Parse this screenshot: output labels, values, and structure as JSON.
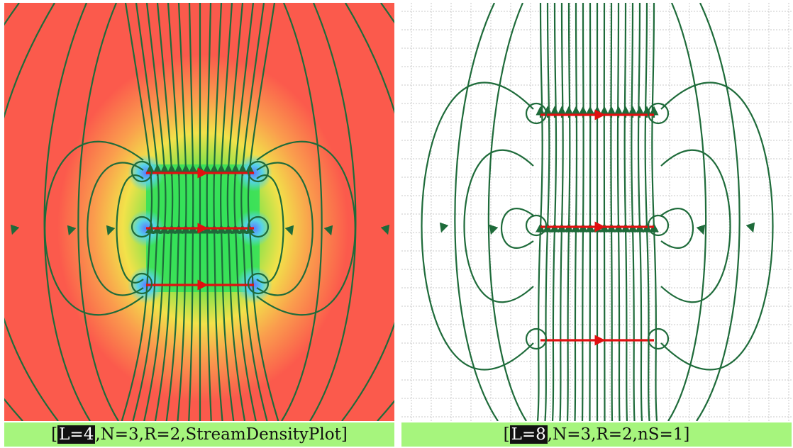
{
  "colors": {
    "caption_bg": "#a6f57d",
    "field_line": "#1e6b3a",
    "conductor": "#e01010",
    "field_far": "#fb5a4c",
    "grid": "#c8c8c8"
  },
  "panels": [
    {
      "id": "left",
      "style": "stream-density-plot",
      "params": {
        "L": 4,
        "N": 3,
        "R": 2,
        "plot_type": "StreamDensityPlot"
      },
      "caption": {
        "open": "[",
        "highlight": "L=4",
        "rest": ",N=3,R=2,StreamDensityPlot]"
      }
    },
    {
      "id": "right",
      "style": "stream-plot-gridlines",
      "params": {
        "L": 8,
        "N": 3,
        "R": 2,
        "nS": 1
      },
      "caption": {
        "open": "[",
        "highlight": "L=8",
        "rest": ",N=3,R=2,nS=1]"
      }
    }
  ]
}
